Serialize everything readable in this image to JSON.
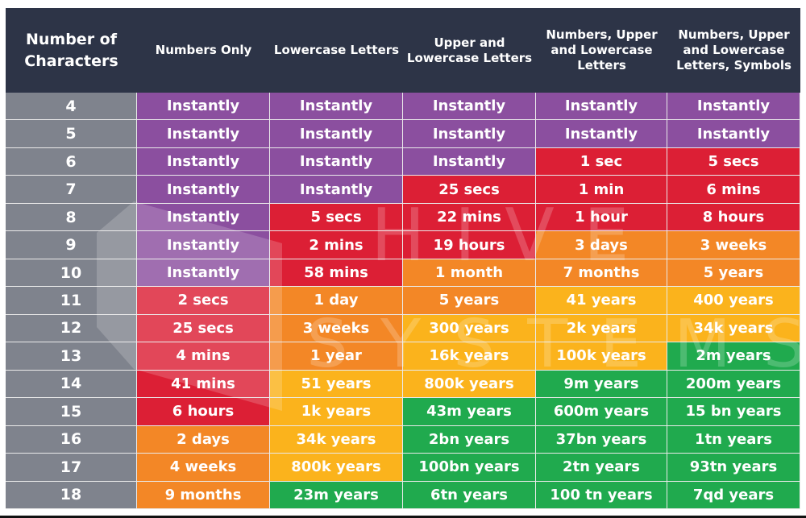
{
  "header": {
    "columns": [
      "Number of Characters",
      "Numbers Only",
      "Lowercase Letters",
      "Upper and Lowercase Letters",
      "Numbers, Upper and Lowercase Letters",
      "Numbers, Upper and Lowercase Letters, Symbols"
    ]
  },
  "colors": {
    "header": "#2d3447",
    "count": "#7f838d",
    "P": "#8b4f9f",
    "R": "#dc1f35",
    "O": "#f38726",
    "Y": "#fbb31c",
    "G": "#20aa4e"
  },
  "watermark": {
    "line1": "HIVE",
    "line2": "SYSTEMS"
  },
  "rows": [
    {
      "n": "4",
      "cells": [
        "Instantly",
        "Instantly",
        "Instantly",
        "Instantly",
        "Instantly"
      ],
      "colors": [
        "P",
        "P",
        "P",
        "P",
        "P"
      ]
    },
    {
      "n": "5",
      "cells": [
        "Instantly",
        "Instantly",
        "Instantly",
        "Instantly",
        "Instantly"
      ],
      "colors": [
        "P",
        "P",
        "P",
        "P",
        "P"
      ]
    },
    {
      "n": "6",
      "cells": [
        "Instantly",
        "Instantly",
        "Instantly",
        "1 sec",
        "5 secs"
      ],
      "colors": [
        "P",
        "P",
        "P",
        "R",
        "R"
      ]
    },
    {
      "n": "7",
      "cells": [
        "Instantly",
        "Instantly",
        "25 secs",
        "1 min",
        "6 mins"
      ],
      "colors": [
        "P",
        "P",
        "R",
        "R",
        "R"
      ]
    },
    {
      "n": "8",
      "cells": [
        "Instantly",
        "5 secs",
        "22 mins",
        "1 hour",
        "8 hours"
      ],
      "colors": [
        "P",
        "R",
        "R",
        "R",
        "R"
      ]
    },
    {
      "n": "9",
      "cells": [
        "Instantly",
        "2 mins",
        "19 hours",
        "3 days",
        "3 weeks"
      ],
      "colors": [
        "P",
        "R",
        "R",
        "O",
        "O"
      ]
    },
    {
      "n": "10",
      "cells": [
        "Instantly",
        "58 mins",
        "1 month",
        "7 months",
        "5 years"
      ],
      "colors": [
        "P",
        "R",
        "O",
        "O",
        "O"
      ]
    },
    {
      "n": "11",
      "cells": [
        "2 secs",
        "1 day",
        "5 years",
        "41 years",
        "400 years"
      ],
      "colors": [
        "R",
        "O",
        "O",
        "Y",
        "Y"
      ]
    },
    {
      "n": "12",
      "cells": [
        "25 secs",
        "3 weeks",
        "300 years",
        "2k years",
        "34k years"
      ],
      "colors": [
        "R",
        "O",
        "Y",
        "Y",
        "Y"
      ]
    },
    {
      "n": "13",
      "cells": [
        "4 mins",
        "1 year",
        "16k years",
        "100k years",
        "2m years"
      ],
      "colors": [
        "R",
        "O",
        "Y",
        "Y",
        "G"
      ]
    },
    {
      "n": "14",
      "cells": [
        "41 mins",
        "51 years",
        "800k years",
        "9m years",
        "200m years"
      ],
      "colors": [
        "R",
        "Y",
        "Y",
        "G",
        "G"
      ]
    },
    {
      "n": "15",
      "cells": [
        "6 hours",
        "1k years",
        "43m years",
        "600m years",
        "15 bn years"
      ],
      "colors": [
        "R",
        "Y",
        "G",
        "G",
        "G"
      ]
    },
    {
      "n": "16",
      "cells": [
        "2 days",
        "34k years",
        "2bn years",
        "37bn years",
        "1tn years"
      ],
      "colors": [
        "O",
        "Y",
        "G",
        "G",
        "G"
      ]
    },
    {
      "n": "17",
      "cells": [
        "4 weeks",
        "800k years",
        "100bn years",
        "2tn years",
        "93tn years"
      ],
      "colors": [
        "O",
        "Y",
        "G",
        "G",
        "G"
      ]
    },
    {
      "n": "18",
      "cells": [
        "9 months",
        "23m years",
        "6tn years",
        "100 tn years",
        "7qd years"
      ],
      "colors": [
        "O",
        "G",
        "G",
        "G",
        "G"
      ]
    }
  ]
}
